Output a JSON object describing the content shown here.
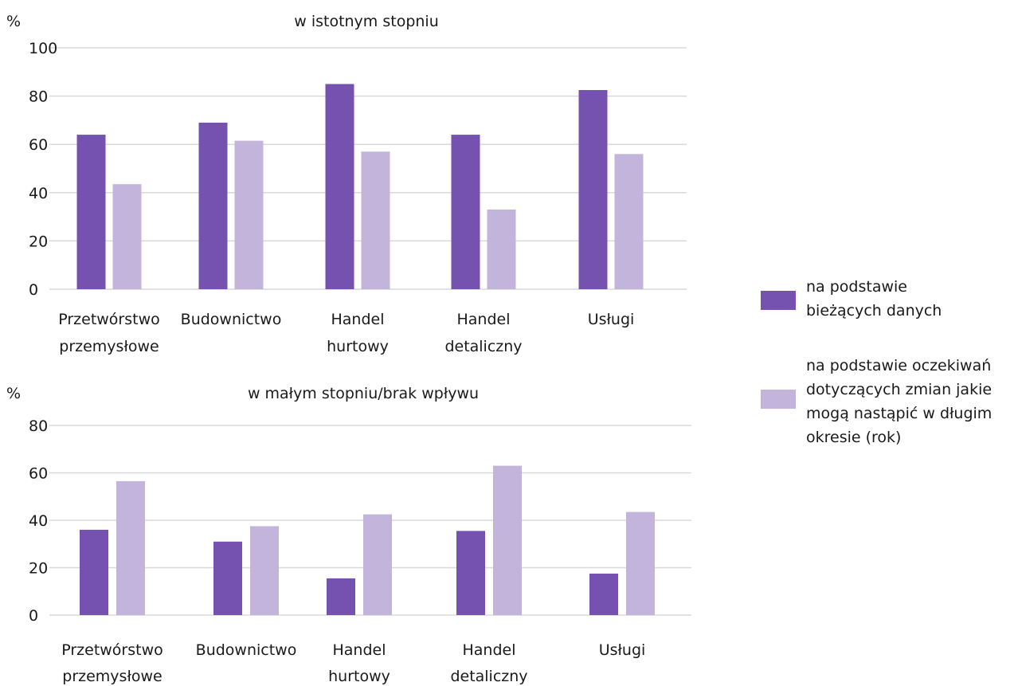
{
  "colors": {
    "series_current": "#7652b0",
    "series_expected": "#c3b4dc"
  },
  "legend": [
    {
      "lines": [
        "na podstawie",
        "bieżących danych"
      ]
    },
    {
      "lines": [
        "na podstawie oczekiwań",
        "dotyczących zmian jakie",
        "mogą nastąpić w długim",
        "okresie (rok)"
      ]
    }
  ],
  "chart_data": [
    {
      "type": "bar",
      "title": "w istotnym stopniu",
      "ylabel": "%",
      "ylim": [
        0,
        100
      ],
      "yticks": [
        0,
        20,
        40,
        60,
        80,
        100
      ],
      "grid": true,
      "legend_position": "right",
      "categories": [
        [
          "Przetwórstwo",
          "przemysłowe"
        ],
        [
          "Budownictwo"
        ],
        [
          "Handel",
          "hurtowy"
        ],
        [
          "Handel",
          "detaliczny"
        ],
        [
          "Usługi"
        ]
      ],
      "series": [
        {
          "values": [
            64,
            69,
            85,
            64,
            82.5
          ]
        },
        {
          "values": [
            43.5,
            61.5,
            57,
            33,
            56
          ]
        }
      ]
    },
    {
      "type": "bar",
      "title": "w małym stopniu/brak wpływu",
      "ylabel": "%",
      "ylim": [
        0,
        80
      ],
      "yticks": [
        0,
        20,
        40,
        60,
        80
      ],
      "grid": true,
      "legend_position": "right",
      "categories": [
        [
          "Przetwórstwo",
          "przemysłowe"
        ],
        [
          "Budownictwo"
        ],
        [
          "Handel",
          "hurtowy"
        ],
        [
          "Handel",
          "detaliczny"
        ],
        [
          "Usługi"
        ]
      ],
      "series": [
        {
          "values": [
            36,
            31,
            15.5,
            35.5,
            17.5
          ]
        },
        {
          "values": [
            56.5,
            37.5,
            42.5,
            63,
            43.5
          ]
        }
      ]
    }
  ]
}
